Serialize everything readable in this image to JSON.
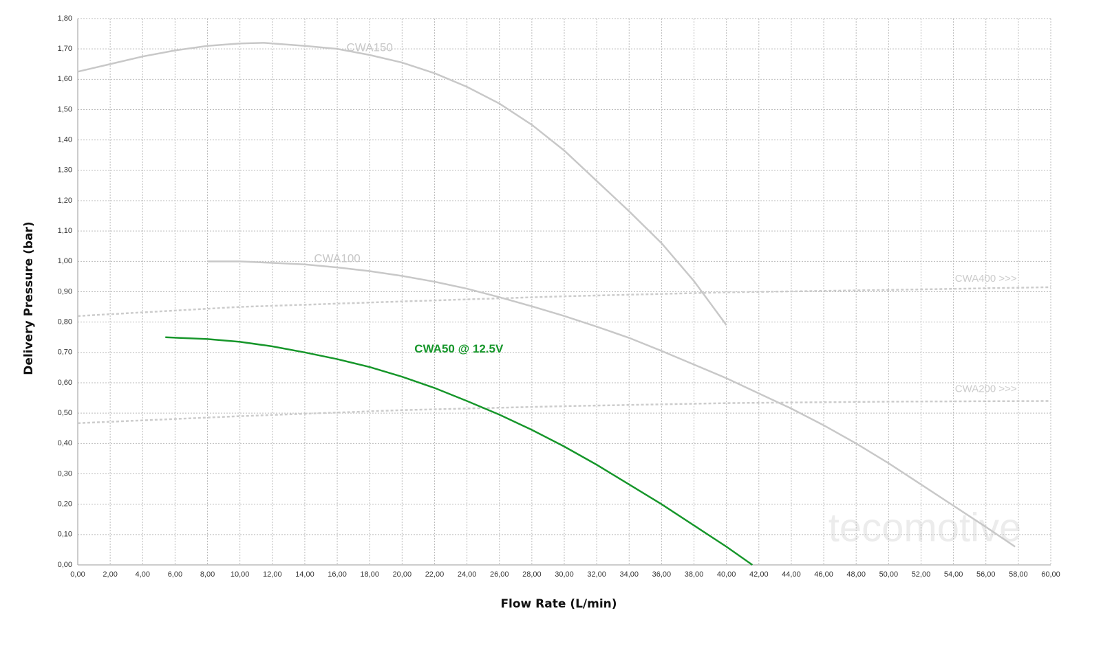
{
  "chart_data": {
    "type": "line",
    "x_label": "Flow Rate (L/min)",
    "y_label": "Delivery Pressure (bar)",
    "watermark": "tecomotive",
    "grid": true,
    "xlim": [
      0,
      60
    ],
    "ylim": [
      0,
      1.8
    ],
    "xticks": [
      {
        "value": 0,
        "label": "0,00"
      },
      {
        "value": 2,
        "label": "2,00"
      },
      {
        "value": 4,
        "label": "4,00"
      },
      {
        "value": 6,
        "label": "6,00"
      },
      {
        "value": 8,
        "label": "8,00"
      },
      {
        "value": 10,
        "label": "10,00"
      },
      {
        "value": 12,
        "label": "12,00"
      },
      {
        "value": 14,
        "label": "14,00"
      },
      {
        "value": 16,
        "label": "16,00"
      },
      {
        "value": 18,
        "label": "18,00"
      },
      {
        "value": 20,
        "label": "20,00"
      },
      {
        "value": 22,
        "label": "22,00"
      },
      {
        "value": 24,
        "label": "24,00"
      },
      {
        "value": 26,
        "label": "26,00"
      },
      {
        "value": 28,
        "label": "28,00"
      },
      {
        "value": 30,
        "label": "30,00"
      },
      {
        "value": 32,
        "label": "32,00"
      },
      {
        "value": 34,
        "label": "34,00"
      },
      {
        "value": 36,
        "label": "36,00"
      },
      {
        "value": 38,
        "label": "38,00"
      },
      {
        "value": 40,
        "label": "40,00"
      },
      {
        "value": 42,
        "label": "42,00"
      },
      {
        "value": 44,
        "label": "44,00"
      },
      {
        "value": 46,
        "label": "46,00"
      },
      {
        "value": 48,
        "label": "48,00"
      },
      {
        "value": 50,
        "label": "50,00"
      },
      {
        "value": 52,
        "label": "52,00"
      },
      {
        "value": 54,
        "label": "54,00"
      },
      {
        "value": 56,
        "label": "56,00"
      },
      {
        "value": 58,
        "label": "58,00"
      },
      {
        "value": 60,
        "label": "60,00"
      }
    ],
    "yticks": [
      {
        "value": 0,
        "label": "0,00"
      },
      {
        "value": 0.1,
        "label": "0,10"
      },
      {
        "value": 0.2,
        "label": "0,20"
      },
      {
        "value": 0.3,
        "label": "0,30"
      },
      {
        "value": 0.4,
        "label": "0,40"
      },
      {
        "value": 0.5,
        "label": "0,50"
      },
      {
        "value": 0.6,
        "label": "0,60"
      },
      {
        "value": 0.7,
        "label": "0,70"
      },
      {
        "value": 0.8,
        "label": "0,80"
      },
      {
        "value": 0.9,
        "label": "0,90"
      },
      {
        "value": 1.0,
        "label": "1,00"
      },
      {
        "value": 1.1,
        "label": "1,10"
      },
      {
        "value": 1.2,
        "label": "1,20"
      },
      {
        "value": 1.3,
        "label": "1,30"
      },
      {
        "value": 1.4,
        "label": "1,40"
      },
      {
        "value": 1.5,
        "label": "1,50"
      },
      {
        "value": 1.6,
        "label": "1,60"
      },
      {
        "value": 1.7,
        "label": "1,70"
      },
      {
        "value": 1.8,
        "label": "1,80"
      }
    ],
    "series": [
      {
        "name": "CWA150",
        "color": "#c8c8c8",
        "line_style": "solid",
        "x": [
          0,
          2,
          4,
          6,
          8,
          10,
          11.5,
          14,
          16,
          18,
          20,
          22,
          24,
          26,
          28,
          30,
          32,
          34,
          36,
          38,
          40
        ],
        "values": [
          1.625,
          1.65,
          1.675,
          1.695,
          1.71,
          1.718,
          1.72,
          1.71,
          1.7,
          1.68,
          1.655,
          1.62,
          1.575,
          1.52,
          1.45,
          1.365,
          1.265,
          1.165,
          1.06,
          0.935,
          0.79
        ]
      },
      {
        "name": "CWA100",
        "color": "#c8c8c8",
        "line_style": "solid",
        "x": [
          8,
          10,
          12,
          14,
          16,
          18,
          20,
          22,
          24,
          26,
          28,
          30,
          32,
          34,
          36,
          38,
          40,
          42,
          44,
          46,
          48,
          50,
          52,
          54,
          56,
          57.8
        ],
        "values": [
          1.0,
          1.0,
          0.995,
          0.99,
          0.98,
          0.968,
          0.952,
          0.933,
          0.91,
          0.882,
          0.852,
          0.82,
          0.785,
          0.748,
          0.705,
          0.66,
          0.615,
          0.565,
          0.515,
          0.46,
          0.4,
          0.335,
          0.265,
          0.195,
          0.125,
          0.06
        ]
      },
      {
        "name": "CWA400 >>>",
        "color": "#cccccc",
        "line_style": "dashed",
        "x": [
          0,
          10,
          20,
          30,
          40,
          50,
          60
        ],
        "values": [
          0.82,
          0.85,
          0.868,
          0.885,
          0.898,
          0.906,
          0.915
        ]
      },
      {
        "name": "CWA200 >>>",
        "color": "#cccccc",
        "line_style": "dashed",
        "x": [
          0,
          10,
          20,
          30,
          40,
          50,
          60
        ],
        "values": [
          0.467,
          0.49,
          0.51,
          0.523,
          0.533,
          0.538,
          0.54
        ]
      },
      {
        "name": "CWA50 @ 12.5V",
        "color": "#16962a",
        "line_style": "solid",
        "x": [
          5.4,
          8,
          10,
          12,
          14,
          16,
          18,
          20,
          22,
          24,
          26,
          28,
          30,
          32,
          34,
          36,
          38,
          40,
          41.6
        ],
        "values": [
          0.75,
          0.744,
          0.735,
          0.72,
          0.7,
          0.678,
          0.652,
          0.62,
          0.583,
          0.54,
          0.495,
          0.445,
          0.39,
          0.33,
          0.265,
          0.2,
          0.13,
          0.06,
          0.0
        ]
      }
    ]
  }
}
